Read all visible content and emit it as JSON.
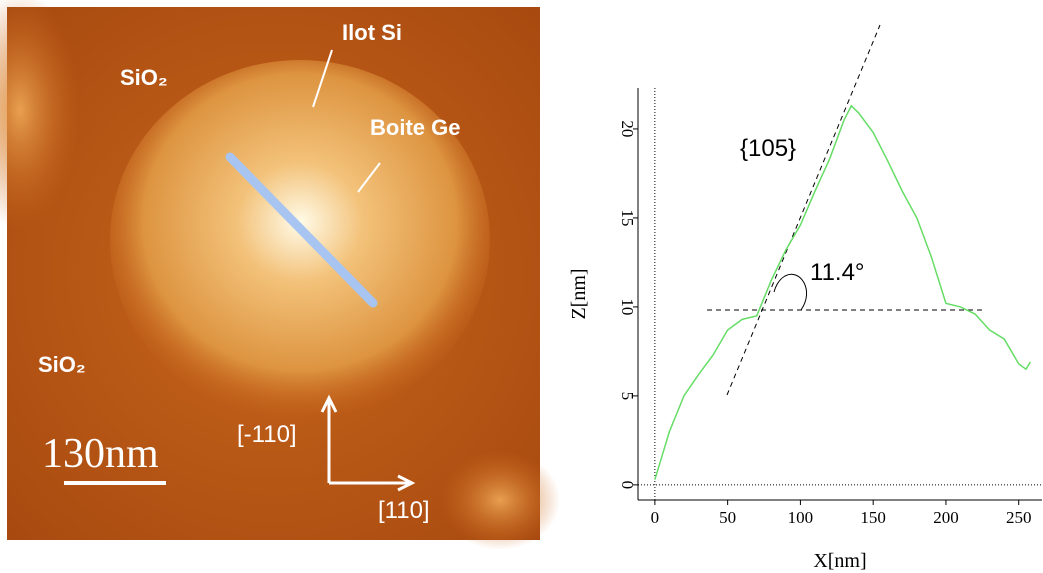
{
  "image": {
    "labels": [
      "Ilot Si",
      "SiO₂",
      "Boite Ge",
      "SiO₂",
      "130nm",
      "[-110]",
      "[110]"
    ]
  },
  "chart_data": {
    "type": "line",
    "xlabel": "X[nm]",
    "ylabel": "Z[nm]",
    "annotations": [
      "{105}",
      "11.4°"
    ],
    "x": [
      0,
      10,
      20,
      30,
      40,
      50,
      60,
      70,
      80,
      90,
      100,
      110,
      120,
      130,
      135,
      140,
      150,
      160,
      170,
      180,
      190,
      200,
      210,
      220,
      230,
      240,
      250,
      255,
      258
    ],
    "series": [
      {
        "color": "#66dd66",
        "values": [
          0.3,
          3,
          5,
          6.2,
          7.3,
          8.7,
          9.3,
          9.5,
          11.5,
          13.2,
          14.6,
          16.5,
          18.3,
          20.5,
          21.3,
          20.9,
          19.8,
          18.2,
          16.5,
          15,
          12.8,
          10.2,
          10,
          9.6,
          8.7,
          8.2,
          6.8,
          6.5,
          6.9
        ]
      }
    ],
    "xlim": [
      -11.6,
      266
    ],
    "ylim": [
      -0.85,
      22.3
    ],
    "xticks": [
      0,
      50,
      100,
      150,
      200,
      250
    ],
    "yticks": [
      0,
      5,
      10,
      15,
      20
    ]
  }
}
